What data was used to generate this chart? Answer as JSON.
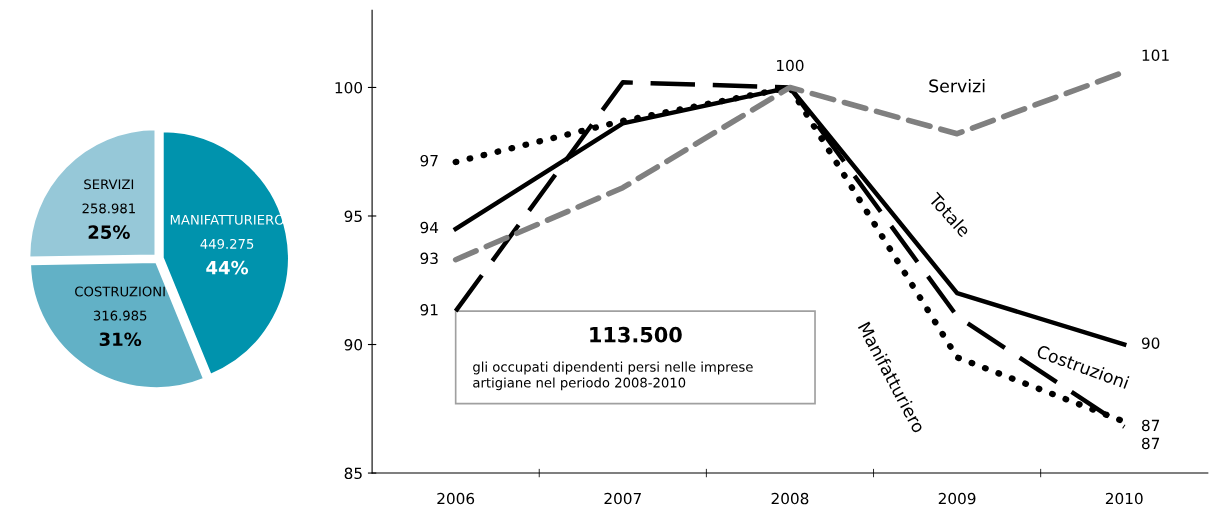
{
  "chart_data": [
    {
      "type": "pie",
      "categories": [
        "MANIFATTURIERO",
        "COSTRUZIONI",
        "SERVIZI"
      ],
      "values": [
        449275,
        316985,
        258981
      ],
      "colors": [
        "#0093ad",
        "#62b1c6",
        "#96c8d8"
      ],
      "value_labels": [
        "449.275\n44%",
        "316.985\n31%",
        "258.981\n25%"
      ]
    },
    {
      "type": "line",
      "categories": [
        "2006",
        "2007",
        "2008",
        "2009",
        "2010"
      ],
      "ylim": [
        85,
        103
      ],
      "yticks": [
        85,
        90,
        95,
        100
      ],
      "grid": false,
      "legend": false,
      "marker": "none",
      "series": [
        {
          "name": "Totale",
          "color": "#000000",
          "line_style": "solid",
          "values": [
            94.5,
            98.6,
            100,
            92.0,
            90.0
          ],
          "value_labels": [
            "94",
            null,
            "100",
            null,
            "90"
          ]
        },
        {
          "name": "Costruzioni",
          "color": "#000000",
          "line_style": "dashed",
          "values": [
            91.3,
            100.2,
            100,
            91.1,
            86.8
          ],
          "value_labels": [
            "91",
            null,
            null,
            null,
            "87"
          ]
        },
        {
          "name": "Manifatturiero",
          "color": "#000000",
          "line_style": "dotted",
          "values": [
            97.1,
            98.7,
            100,
            89.5,
            87.0
          ],
          "value_labels": [
            "97",
            null,
            null,
            null,
            "87"
          ]
        },
        {
          "name": "Servizi",
          "color": "#808080",
          "line_style": "dashed",
          "values": [
            93.3,
            96.1,
            100,
            98.2,
            100.6
          ],
          "value_labels": [
            "93",
            null,
            null,
            null,
            "101"
          ]
        }
      ],
      "annotations": [
        "113.500",
        "gli occupati dipendenti persi nelle imprese\nartigiane nel periodo 2008-2010"
      ]
    }
  ]
}
